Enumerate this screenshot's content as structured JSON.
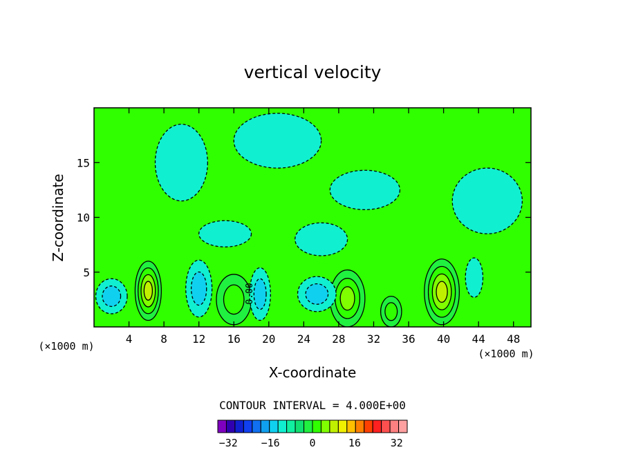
{
  "chart_data": {
    "type": "contour",
    "title": "vertical velocity",
    "xlabel": "X-coordinate",
    "ylabel": "Z-coordinate",
    "x_unit_label": "(×1000 m)",
    "y_unit_label": "(×1000 m)",
    "xlim": [
      0,
      50
    ],
    "ylim": [
      0,
      20
    ],
    "x_ticks": [
      4,
      8,
      12,
      16,
      20,
      24,
      28,
      32,
      36,
      40,
      44,
      48
    ],
    "y_ticks": [
      5,
      10,
      15
    ],
    "contour_interval_text": "CONTOUR INTERVAL = 4.000E+00",
    "inline_label": "0.00",
    "colorbar": {
      "min": -36,
      "max": 36,
      "step": 4,
      "tick_values": [
        -32,
        -16,
        0,
        16,
        32
      ],
      "colors": [
        "#8000c0",
        "#3000b0",
        "#1020d0",
        "#1040f0",
        "#1070f0",
        "#10a0f0",
        "#10d0f0",
        "#10f0d0",
        "#10f0a0",
        "#10e070",
        "#20f040",
        "#30ff00",
        "#80ff00",
        "#c0f000",
        "#f0f000",
        "#ffc000",
        "#ff8000",
        "#ff4000",
        "#ff2020",
        "#ff5050",
        "#ff8080",
        "#ffa0a0"
      ]
    },
    "background_level_color": "#30ff00",
    "features": [
      {
        "kind": "updraft",
        "x": 6.2,
        "z": 3.3,
        "rx": 1.5,
        "rz": 2.7,
        "levels": [
          4,
          8,
          12,
          16
        ]
      },
      {
        "kind": "updraft",
        "x": 16.0,
        "z": 2.5,
        "rx": 2.0,
        "rz": 2.3,
        "levels": [
          4,
          8
        ]
      },
      {
        "kind": "updraft",
        "x": 29.0,
        "z": 2.6,
        "rx": 2.0,
        "rz": 2.6,
        "levels": [
          4,
          8,
          12
        ]
      },
      {
        "kind": "updraft",
        "x": 39.8,
        "z": 3.2,
        "rx": 2.0,
        "rz": 3.0,
        "levels": [
          4,
          8,
          12,
          16
        ]
      },
      {
        "kind": "updraft",
        "x": 34.0,
        "z": 1.4,
        "rx": 1.2,
        "rz": 1.4,
        "levels": [
          4,
          8
        ]
      },
      {
        "kind": "downdraft",
        "x": 2.0,
        "z": 2.8,
        "rx": 1.8,
        "rz": 1.6,
        "levels": [
          -4,
          -8
        ]
      },
      {
        "kind": "downdraft",
        "x": 12.0,
        "z": 3.5,
        "rx": 1.5,
        "rz": 2.6,
        "levels": [
          -4,
          -8
        ]
      },
      {
        "kind": "downdraft",
        "x": 19.0,
        "z": 3.0,
        "rx": 1.2,
        "rz": 2.4,
        "levels": [
          -4,
          -8
        ]
      },
      {
        "kind": "downdraft",
        "x": 25.5,
        "z": 3.0,
        "rx": 2.2,
        "rz": 1.6,
        "levels": [
          -4,
          -8
        ]
      },
      {
        "kind": "downdraft",
        "x": 43.5,
        "z": 4.5,
        "rx": 1.0,
        "rz": 1.8,
        "levels": [
          -4
        ]
      },
      {
        "kind": "weak",
        "x": 10.0,
        "z": 15.0,
        "rx": 3.0,
        "rz": 3.5,
        "levels": [
          -4
        ]
      },
      {
        "kind": "weak",
        "x": 21.0,
        "z": 17.0,
        "rx": 5.0,
        "rz": 2.5,
        "levels": [
          -4
        ]
      },
      {
        "kind": "weak",
        "x": 31.0,
        "z": 12.5,
        "rx": 4.0,
        "rz": 1.8,
        "levels": [
          -4
        ]
      },
      {
        "kind": "weak",
        "x": 45.0,
        "z": 11.5,
        "rx": 4.0,
        "rz": 3.0,
        "levels": [
          -4
        ]
      },
      {
        "kind": "weak",
        "x": 26.0,
        "z": 8.0,
        "rx": 3.0,
        "rz": 1.5,
        "levels": [
          -4
        ]
      },
      {
        "kind": "weak",
        "x": 15.0,
        "z": 8.5,
        "rx": 3.0,
        "rz": 1.2,
        "levels": [
          -4
        ]
      }
    ]
  }
}
